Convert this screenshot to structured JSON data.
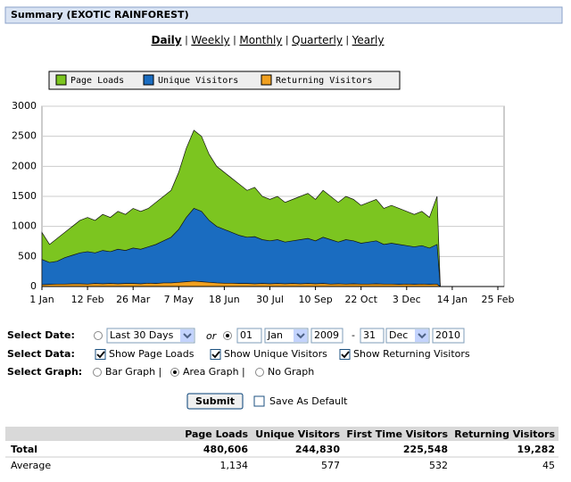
{
  "header": {
    "title": "Summary (EXOTIC RAINFOREST)"
  },
  "nav": {
    "items": [
      "Daily",
      "Weekly",
      "Monthly",
      "Quarterly",
      "Yearly"
    ],
    "separator": "|",
    "active": 0
  },
  "chart_data": {
    "type": "area",
    "legend": "top",
    "grid": true,
    "x": [
      0,
      7,
      14,
      21,
      28,
      35,
      42,
      49,
      56,
      63,
      70,
      77,
      84,
      91,
      98,
      105,
      112,
      119,
      126,
      133,
      140,
      147,
      154,
      161,
      168,
      175,
      182,
      189,
      196,
      203,
      210,
      217,
      224,
      231,
      238,
      245,
      252,
      259,
      266,
      273,
      280,
      287,
      294,
      301,
      308,
      315,
      322,
      329,
      336,
      343,
      350,
      357,
      364,
      367
    ],
    "series": [
      {
        "name": "Page Loads",
        "color": "#7cc520",
        "values": [
          900,
          700,
          800,
          900,
          1000,
          1100,
          1150,
          1100,
          1200,
          1150,
          1250,
          1200,
          1300,
          1250,
          1300,
          1400,
          1500,
          1600,
          1900,
          2300,
          2600,
          2500,
          2200,
          2000,
          1900,
          1800,
          1700,
          1600,
          1650,
          1500,
          1450,
          1500,
          1400,
          1450,
          1500,
          1550,
          1450,
          1600,
          1500,
          1400,
          1500,
          1450,
          1350,
          1400,
          1450,
          1300,
          1350,
          1300,
          1250,
          1200,
          1250,
          1150,
          1500,
          0
        ]
      },
      {
        "name": "Unique Visitors",
        "color": "#1a6cc0",
        "values": [
          450,
          400,
          420,
          480,
          520,
          560,
          580,
          560,
          600,
          580,
          620,
          600,
          640,
          620,
          660,
          700,
          760,
          820,
          950,
          1150,
          1300,
          1250,
          1100,
          1000,
          950,
          900,
          850,
          820,
          830,
          780,
          760,
          780,
          740,
          760,
          780,
          800,
          760,
          820,
          780,
          740,
          780,
          760,
          720,
          740,
          760,
          700,
          720,
          700,
          680,
          660,
          680,
          640,
          700,
          0
        ]
      },
      {
        "name": "Returning Visitors",
        "color": "#f0a020",
        "values": [
          30,
          35,
          40,
          40,
          45,
          45,
          40,
          50,
          45,
          50,
          45,
          50,
          50,
          45,
          55,
          50,
          60,
          60,
          70,
          80,
          90,
          80,
          70,
          60,
          55,
          55,
          50,
          50,
          45,
          50,
          45,
          50,
          45,
          50,
          45,
          50,
          45,
          50,
          40,
          45,
          40,
          45,
          40,
          40,
          45,
          40,
          40,
          35,
          40,
          35,
          40,
          35,
          40,
          0
        ]
      }
    ],
    "xlim": [
      0,
      420
    ],
    "xticks": [
      {
        "value": 0,
        "label": "1 Jan"
      },
      {
        "value": 42,
        "label": "12 Feb"
      },
      {
        "value": 84,
        "label": "26 Mar"
      },
      {
        "value": 126,
        "label": "7 May"
      },
      {
        "value": 168,
        "label": "18 Jun"
      },
      {
        "value": 210,
        "label": "30 Jul"
      },
      {
        "value": 252,
        "label": "10 Sep"
      },
      {
        "value": 294,
        "label": "22 Oct"
      },
      {
        "value": 336,
        "label": "3 Dec"
      },
      {
        "value": 378,
        "label": "14 Jan"
      },
      {
        "value": 420,
        "label": "25 Feb"
      }
    ],
    "ylim": [
      0,
      3000
    ],
    "yticks": [
      0,
      500,
      1000,
      1500,
      2000,
      2500,
      3000
    ]
  },
  "controls": {
    "date": {
      "label": "Select Date:",
      "range_option": "Last 30 Days",
      "or": "or",
      "from_day": "01",
      "from_month": "Jan",
      "from_year": "2009",
      "dash": "-",
      "to_day": "31",
      "to_month": "Dec",
      "to_year": "2010"
    },
    "data": {
      "label": "Select Data:",
      "options": [
        "Show Page Loads",
        "Show Unique Visitors",
        "Show Returning Visitors"
      ]
    },
    "graph": {
      "label": "Select Graph:",
      "options": [
        "Bar Graph |",
        "Area Graph |",
        "No Graph"
      ],
      "selected": 1
    },
    "submit": "Submit",
    "save_default": "Save As Default"
  },
  "table": {
    "headers": [
      "Page Loads",
      "Unique Visitors",
      "First Time Visitors",
      "Returning Visitors"
    ],
    "rows": [
      [
        "Total",
        "480,606",
        "244,830",
        "225,548",
        "19,282"
      ],
      [
        "Average",
        "1,134",
        "577",
        "532",
        "45"
      ]
    ]
  }
}
